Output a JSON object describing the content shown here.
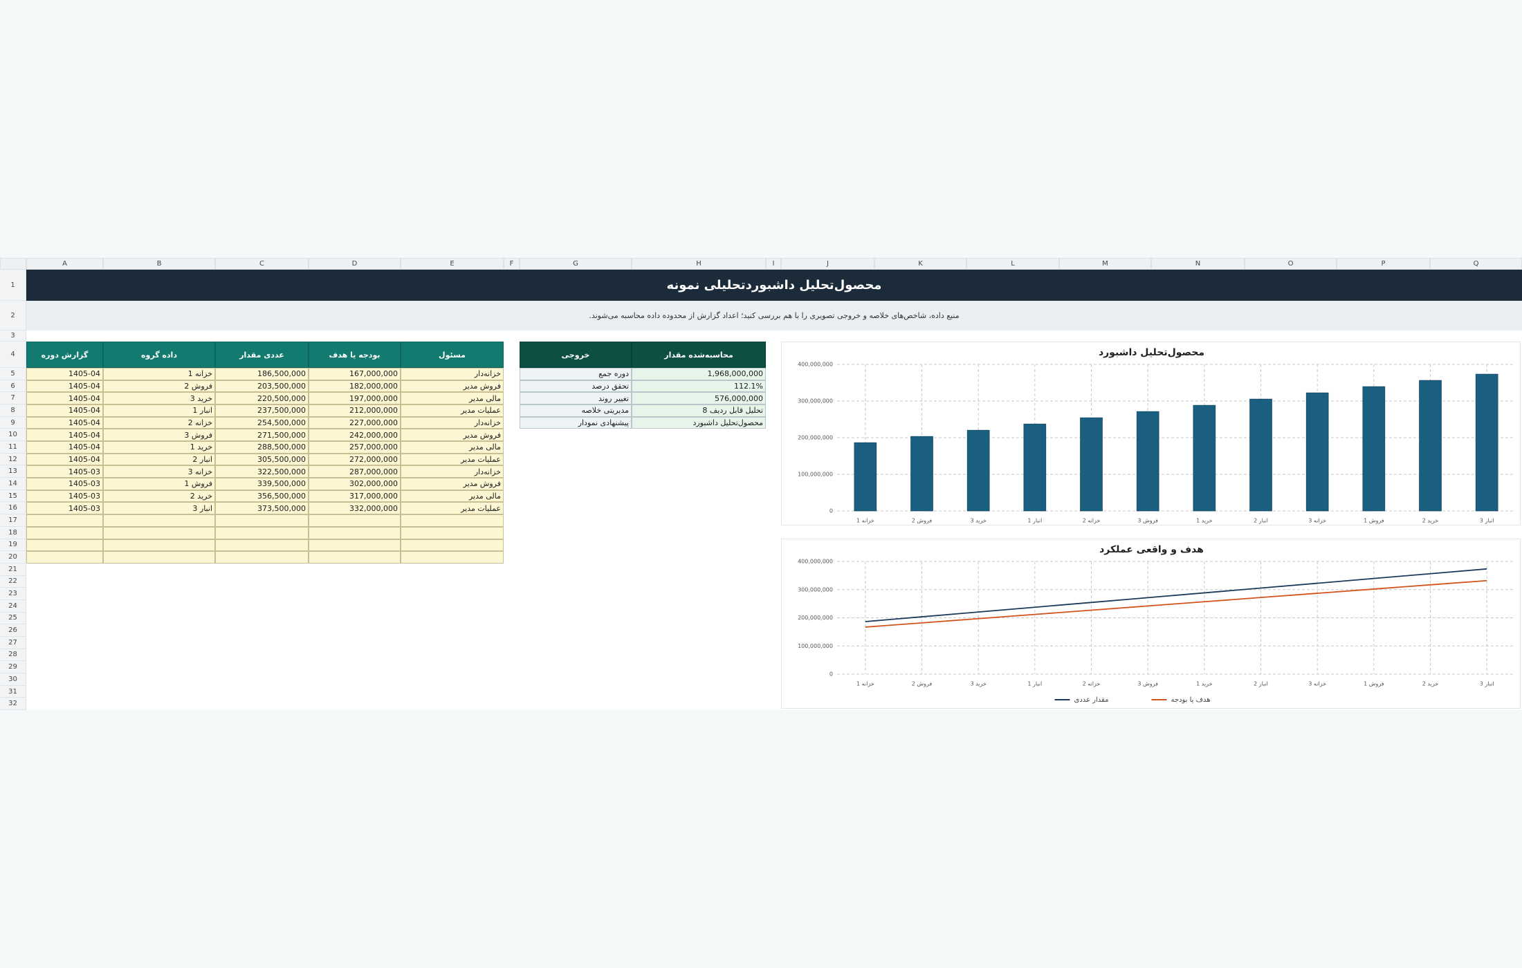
{
  "columns": [
    "A",
    "B",
    "C",
    "D",
    "E",
    "F",
    "G",
    "H",
    "I",
    "J",
    "K",
    "L",
    "M",
    "N",
    "O",
    "P",
    "Q"
  ],
  "rows": [
    "1",
    "2",
    "3",
    "4",
    "5",
    "6",
    "7",
    "8",
    "9",
    "10",
    "11",
    "12",
    "13",
    "14",
    "15",
    "16",
    "17",
    "18",
    "19",
    "20",
    "21",
    "22",
    "23",
    "24",
    "25",
    "26",
    "27",
    "28",
    "29",
    "30",
    "31",
    "32"
  ],
  "title": "محصول‌تحلیل داشبورد‌تحلیلی نمونه",
  "subtitle": "منبع داده، شاخص‌های خلاصه و خروجی تصویری را با هم بررسی کنید؛ اعداد گزارش از محدوده داده محاسبه می‌شوند.",
  "table": {
    "headers": [
      "گزارش دوره",
      "داده گروه",
      "عددی مقدار",
      "بودجه یا هدف",
      "مسئول"
    ],
    "rows": [
      [
        "1405-04",
        "خزانه 1",
        "186,500,000",
        "167,000,000",
        "خزانه‌دار"
      ],
      [
        "1405-04",
        "فروش 2",
        "203,500,000",
        "182,000,000",
        "فروش مدیر"
      ],
      [
        "1405-04",
        "خرید 3",
        "220,500,000",
        "197,000,000",
        "مالی مدیر"
      ],
      [
        "1405-04",
        "انبار 1",
        "237,500,000",
        "212,000,000",
        "عملیات مدیر"
      ],
      [
        "1405-04",
        "خزانه 2",
        "254,500,000",
        "227,000,000",
        "خزانه‌دار"
      ],
      [
        "1405-04",
        "فروش 3",
        "271,500,000",
        "242,000,000",
        "فروش مدیر"
      ],
      [
        "1405-04",
        "خرید 1",
        "288,500,000",
        "257,000,000",
        "مالی مدیر"
      ],
      [
        "1405-04",
        "انبار 2",
        "305,500,000",
        "272,000,000",
        "عملیات مدیر"
      ],
      [
        "1405-03",
        "خزانه 3",
        "322,500,000",
        "287,000,000",
        "خزانه‌دار"
      ],
      [
        "1405-03",
        "فروش 1",
        "339,500,000",
        "302,000,000",
        "فروش مدیر"
      ],
      [
        "1405-03",
        "خرید 2",
        "356,500,000",
        "317,000,000",
        "مالی مدیر"
      ],
      [
        "1405-03",
        "انبار 3",
        "373,500,000",
        "332,000,000",
        "عملیات مدیر"
      ]
    ]
  },
  "output": {
    "headers": [
      "خروجی",
      "محاسبه‌شده مقدار"
    ],
    "rows": [
      [
        "دوره جمع",
        "1,968,000,000"
      ],
      [
        "تحقق درصد",
        "112.1%"
      ],
      [
        "تغییر روند",
        "576,000,000"
      ],
      [
        "مدیریتی خلاصه",
        "تحلیل قابل ردیف 8"
      ],
      [
        "پیشنهادی نمودار",
        "محصول‌تحلیل داشبورد"
      ]
    ]
  },
  "chart_data": [
    {
      "type": "bar",
      "title": "محصول‌تحلیل داشبورد",
      "categories": [
        "خزانه 1",
        "فروش 2",
        "خرید 3",
        "انبار 1",
        "خزانه 2",
        "فروش 3",
        "خرید 1",
        "انبار 2",
        "خزانه 3",
        "فروش 1",
        "خرید 2",
        "انبار 3"
      ],
      "values": [
        186500000,
        203500000,
        220500000,
        237500000,
        254500000,
        271500000,
        288500000,
        305500000,
        322500000,
        339500000,
        356500000,
        373500000
      ],
      "color": "#1a5e80",
      "ylim": [
        0,
        400000000
      ],
      "yticks": [
        0,
        {
          "value": 100000000,
          "label": "100,000,000"
        },
        {
          "value": 200000000,
          "label": "200,000,000"
        },
        {
          "value": 300000000,
          "label": "300,000,000"
        },
        {
          "value": 400000000,
          "label": "400,000,000"
        }
      ],
      "grid": true
    },
    {
      "type": "line",
      "title": "هدف و واقعی عملکرد",
      "categories": [
        "خزانه 1",
        "فروش 2",
        "خرید 3",
        "انبار 1",
        "خزانه 2",
        "فروش 3",
        "خرید 1",
        "انبار 2",
        "خزانه 3",
        "فروش 1",
        "خرید 2",
        "انبار 3"
      ],
      "series": [
        {
          "name": "مقدار عددی",
          "color": "#1b3a5c",
          "values": [
            186500000,
            203500000,
            220500000,
            237500000,
            254500000,
            271500000,
            288500000,
            305500000,
            322500000,
            339500000,
            356500000,
            373500000
          ]
        },
        {
          "name": "هدف یا بودجه",
          "color": "#d4531a",
          "values": [
            167000000,
            182000000,
            197000000,
            212000000,
            227000000,
            242000000,
            257000000,
            272000000,
            287000000,
            302000000,
            317000000,
            332000000
          ]
        }
      ],
      "ylim": [
        0,
        400000000
      ],
      "yticks": [
        0,
        {
          "value": 100000000,
          "label": "100,000,000"
        },
        {
          "value": 200000000,
          "label": "200,000,000"
        },
        {
          "value": 300000000,
          "label": "300,000,000"
        },
        {
          "value": 400000000,
          "label": "400,000,000"
        }
      ],
      "grid": true,
      "legend": "bottom"
    }
  ]
}
